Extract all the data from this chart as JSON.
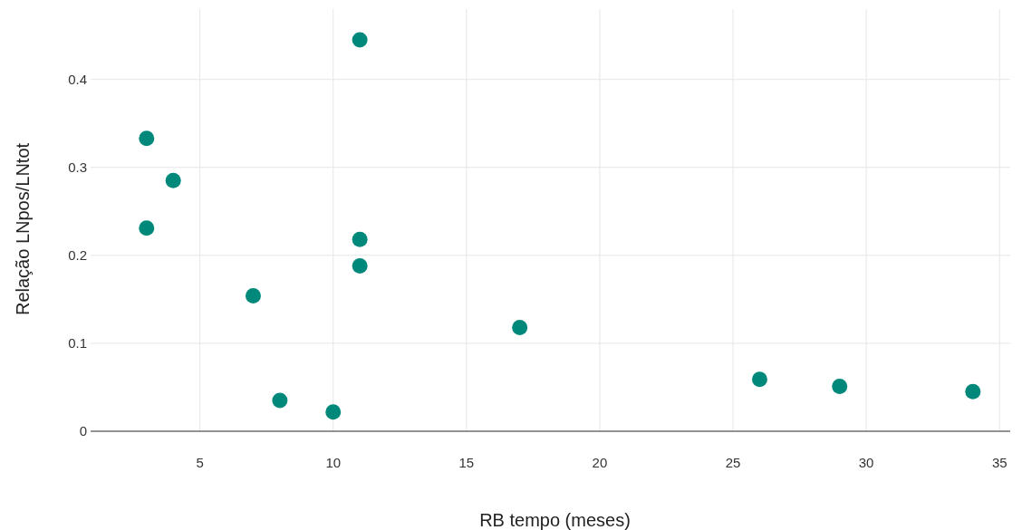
{
  "chart_data": {
    "type": "scatter",
    "xlabel": "RB tempo (meses)",
    "ylabel": "Relação LNpos/LNtot",
    "xlim": [
      0.9,
      35.4
    ],
    "xticks": [
      5,
      10,
      15,
      20,
      25,
      30,
      35
    ],
    "ylim": [
      0,
      0.48
    ],
    "yticks": [
      0,
      0.1,
      0.2,
      0.3,
      0.4
    ],
    "grid": true,
    "marker": "circle",
    "series": [
      {
        "color": "#00897b",
        "x": [
          3,
          4,
          3,
          11,
          11,
          11,
          7,
          8,
          10,
          17,
          26,
          29,
          34
        ],
        "values": [
          0.333,
          0.285,
          0.231,
          0.445,
          0.218,
          0.188,
          0.154,
          0.035,
          0.022,
          0.118,
          0.059,
          0.051,
          0.045
        ]
      }
    ]
  }
}
